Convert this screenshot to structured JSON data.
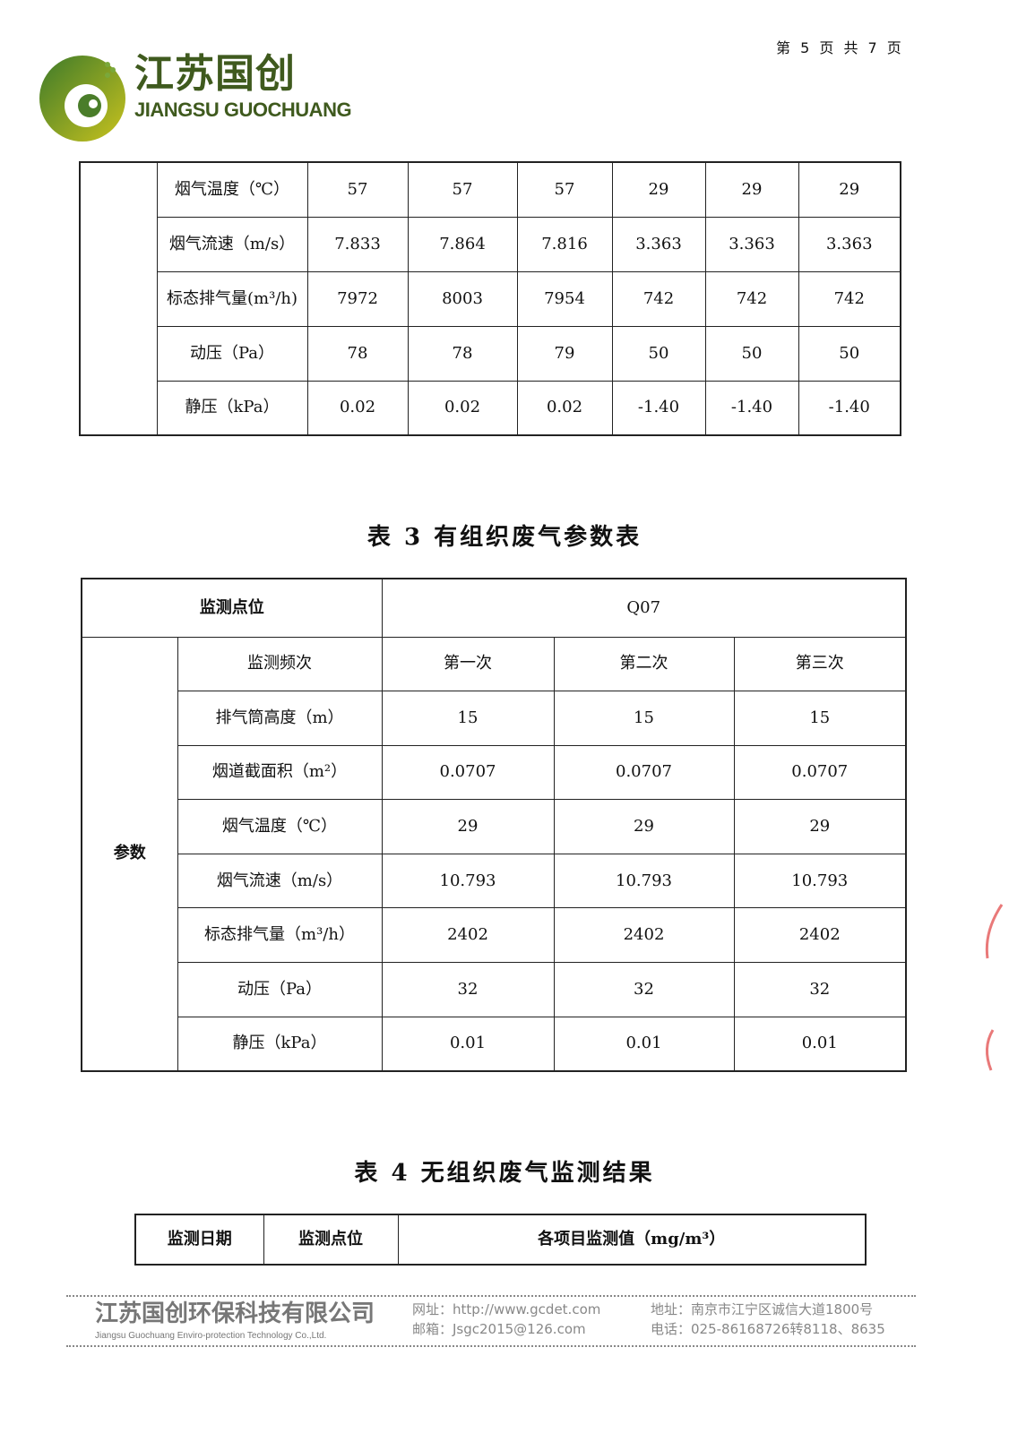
{
  "header": {
    "page_indicator": "第 5 页 共 7 页",
    "logo_cn": "江苏国创",
    "logo_en": "JIANGSU GUOCHUANG"
  },
  "table_prev": {
    "rows": [
      {
        "label": "烟气温度（℃）",
        "values": [
          "57",
          "57",
          "57",
          "29",
          "29",
          "29"
        ]
      },
      {
        "label": "烟气流速（m/s）",
        "values": [
          "7.833",
          "7.864",
          "7.816",
          "3.363",
          "3.363",
          "3.363"
        ]
      },
      {
        "label": "标态排气量(m³/h)",
        "values": [
          "7972",
          "8003",
          "7954",
          "742",
          "742",
          "742"
        ]
      },
      {
        "label": "动压（Pa）",
        "values": [
          "78",
          "78",
          "79",
          "50",
          "50",
          "50"
        ]
      },
      {
        "label": "静压（kPa）",
        "values": [
          "0.02",
          "0.02",
          "0.02",
          "-1.40",
          "-1.40",
          "-1.40"
        ]
      }
    ]
  },
  "table3": {
    "title": "表 3  有组织废气参数表",
    "location_label": "监测点位",
    "location": "Q07",
    "group_label": "参数",
    "rows": [
      {
        "label": "监测频次",
        "values": [
          "第一次",
          "第二次",
          "第三次"
        ]
      },
      {
        "label": "排气筒高度（m）",
        "values": [
          "15",
          "15",
          "15"
        ]
      },
      {
        "label": "烟道截面积（m²）",
        "values": [
          "0.0707",
          "0.0707",
          "0.0707"
        ]
      },
      {
        "label": "烟气温度（℃）",
        "values": [
          "29",
          "29",
          "29"
        ]
      },
      {
        "label": "烟气流速（m/s）",
        "values": [
          "10.793",
          "10.793",
          "10.793"
        ]
      },
      {
        "label": "标态排气量（m³/h）",
        "values": [
          "2402",
          "2402",
          "2402"
        ]
      },
      {
        "label": "动压（Pa）",
        "values": [
          "32",
          "32",
          "32"
        ]
      },
      {
        "label": "静压（kPa）",
        "values": [
          "0.01",
          "0.01",
          "0.01"
        ]
      }
    ]
  },
  "table4": {
    "title": "表 4 无组织废气监测结果",
    "headers": [
      "监测日期",
      "监测点位",
      "各项目监测值（mg/m³）"
    ]
  },
  "footer": {
    "company_cn": "江苏国创环保科技有限公司",
    "company_en": "Jiangsu Guochuang Enviro-protection Technology Co.,Ltd.",
    "website": "网址：http://www.gcdet.com",
    "email": "邮箱：Jsgc2015@126.com",
    "address": "地址：南京市江宁区诚信大道1800号",
    "phone": "电话：025-86168726转8118、8635"
  }
}
